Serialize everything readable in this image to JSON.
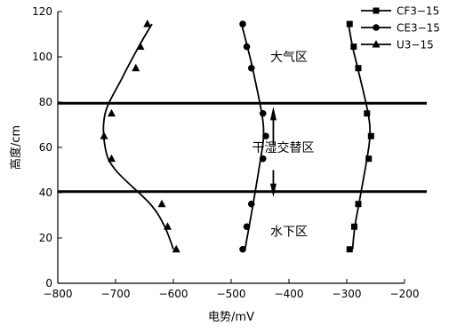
{
  "chart_data": {
    "type": "scatter",
    "xlabel": "电势/mV",
    "ylabel": "高度/cm",
    "xlim": [
      -800,
      -200
    ],
    "ylim": [
      0,
      120
    ],
    "xticks": [
      -800,
      -700,
      -600,
      -500,
      -400,
      -300,
      -200
    ],
    "yticks": [
      0,
      20,
      40,
      60,
      80,
      100,
      120
    ],
    "xtick_labels": [
      "−800",
      "−700",
      "−600",
      "−500",
      "−400",
      "−300",
      "−200"
    ],
    "ytick_labels": [
      "0",
      "20",
      "40",
      "60",
      "80",
      "100",
      "120"
    ],
    "grid": false,
    "legend_position": "top-right",
    "horizontal_lines": [
      79.5,
      40.5
    ],
    "zone_labels": [
      {
        "text": "大气区",
        "x": -400,
        "y": 100
      },
      {
        "text": "干湿交替区",
        "x": -410,
        "y": 60
      },
      {
        "text": "水下区",
        "x": -400,
        "y": 23
      }
    ],
    "series": [
      {
        "name": "CF3−15",
        "marker": "square",
        "points": [
          [
            -295,
            114.5
          ],
          [
            -288,
            104.5
          ],
          [
            -280,
            95
          ],
          [
            -265,
            75
          ],
          [
            -258,
            65
          ],
          [
            -262,
            55
          ],
          [
            -280,
            35
          ],
          [
            -287,
            25
          ],
          [
            -295,
            15
          ]
        ],
        "curve": [
          [
            -297,
            114.5
          ],
          [
            -290,
            104.5
          ],
          [
            -281,
            95
          ],
          [
            -263,
            75
          ],
          [
            -260,
            65
          ],
          [
            -265,
            55
          ],
          [
            -279,
            35
          ],
          [
            -286,
            25
          ],
          [
            -290,
            15
          ]
        ]
      },
      {
        "name": "CE3−15",
        "marker": "circle",
        "points": [
          [
            -480,
            114.5
          ],
          [
            -473,
            104.5
          ],
          [
            -465,
            95
          ],
          [
            -445,
            75
          ],
          [
            -440,
            65
          ],
          [
            -445,
            55
          ],
          [
            -465,
            35
          ],
          [
            -473,
            25
          ],
          [
            -480,
            15
          ]
        ],
        "curve": [
          [
            -482,
            114.5
          ],
          [
            -472,
            104.5
          ],
          [
            -463,
            95
          ],
          [
            -447,
            75
          ],
          [
            -444,
            65
          ],
          [
            -449,
            55
          ],
          [
            -462,
            35
          ],
          [
            -469,
            25
          ],
          [
            -476,
            15
          ]
        ]
      },
      {
        "name": "U3−15",
        "marker": "triangle",
        "points": [
          [
            -645,
            114.5
          ],
          [
            -657,
            104.5
          ],
          [
            -665,
            95
          ],
          [
            -707,
            75
          ],
          [
            -720,
            65
          ],
          [
            -707,
            55
          ],
          [
            -620,
            35
          ],
          [
            -610,
            25
          ],
          [
            -595,
            15
          ]
        ],
        "curve": [
          [
            -637,
            114.5
          ],
          [
            -660,
            104.5
          ],
          [
            -690,
            90
          ],
          [
            -718,
            75
          ],
          [
            -718,
            60
          ],
          [
            -700,
            50
          ],
          [
            -640,
            35
          ],
          [
            -615,
            25
          ],
          [
            -600,
            15
          ]
        ]
      }
    ]
  }
}
